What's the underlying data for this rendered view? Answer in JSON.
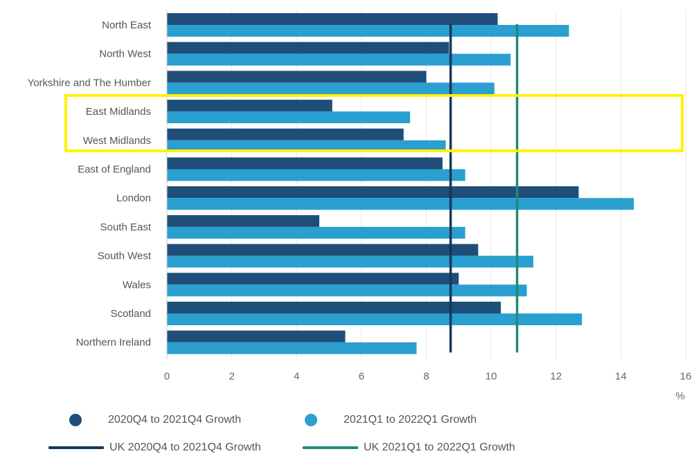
{
  "chart_data": {
    "type": "bar",
    "orientation": "horizontal",
    "categories": [
      "North East",
      "North West",
      "Yorkshire and The Humber",
      "East Midlands",
      "West Midlands",
      "East of England",
      "London",
      "South East",
      "South West",
      "Wales",
      "Scotland",
      "Northern Ireland"
    ],
    "series": [
      {
        "name": "2020Q4 to 2021Q4 Growth",
        "color": "#1f4e79",
        "values": [
          10.2,
          8.7,
          8.0,
          5.1,
          7.3,
          8.5,
          12.7,
          4.7,
          9.6,
          9.0,
          10.3,
          5.5
        ]
      },
      {
        "name": "2021Q1 to 2022Q1 Growth",
        "color": "#2a9fd0",
        "values": [
          12.4,
          10.6,
          10.1,
          7.5,
          8.6,
          9.2,
          14.4,
          9.2,
          11.3,
          11.1,
          12.8,
          7.7
        ]
      }
    ],
    "reference_lines": [
      {
        "name": "UK 2020Q4 to 2021Q4 Growth",
        "value": 8.75,
        "color": "#13385b"
      },
      {
        "name": "UK 2021Q1 to 2022Q1 Growth",
        "value": 10.8,
        "color": "#1f8a7a"
      }
    ],
    "xlim": [
      0,
      16
    ],
    "xticks": [
      0,
      2,
      4,
      6,
      8,
      10,
      12,
      14,
      16
    ],
    "xlabel": "%",
    "grid": "vertical",
    "legend_position": "bottom",
    "highlighted_categories": [
      "East Midlands",
      "West Midlands"
    ],
    "highlight_color": "#fff200"
  }
}
